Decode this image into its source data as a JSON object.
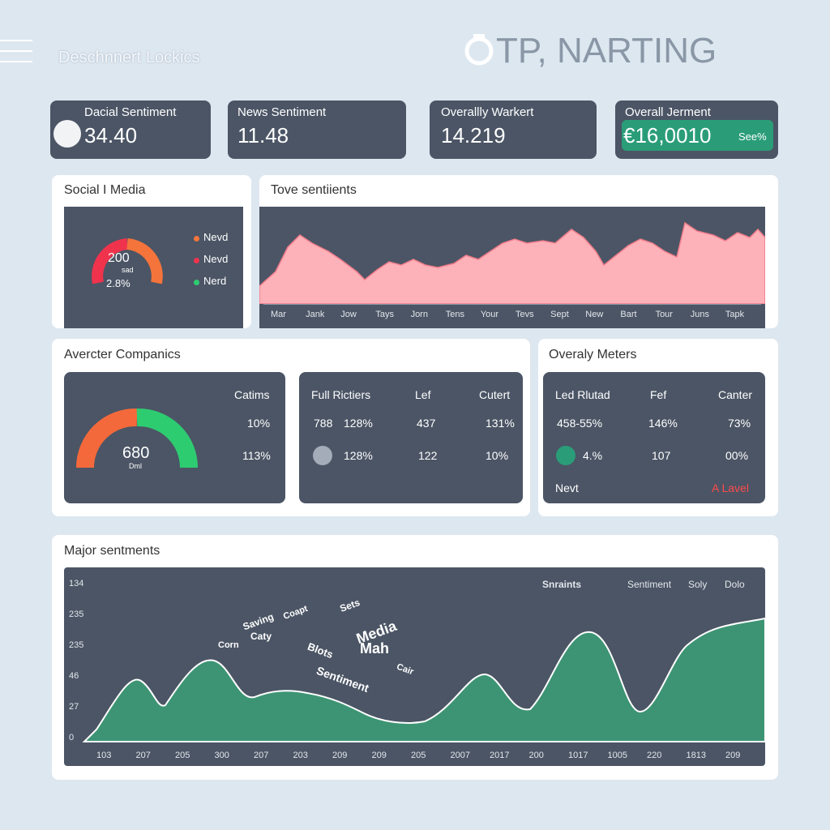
{
  "header": {
    "brand": "Deschnnert Lockics",
    "logo": "TP, NARTING"
  },
  "kpis": [
    {
      "label": "Dacial Sentiment",
      "value": "34.40"
    },
    {
      "label": "News Sentiment",
      "value": "11.48"
    },
    {
      "label": "Overallly Warkert",
      "value": "14.219"
    },
    {
      "label": "Overall Jerment",
      "value": "€16,0010",
      "badge": "See%"
    }
  ],
  "social": {
    "title": "Social I Media",
    "gauge_value": "200",
    "gauge_sub": "sad",
    "gauge_pct": "2.8%",
    "legend": [
      "Nevd",
      "Nevd",
      "Nerd"
    ]
  },
  "trend": {
    "title": "Tove sentiients",
    "x_labels": [
      "Mar",
      "Jank",
      "Jow",
      "Tays",
      "Jorn",
      "Tens",
      "Your",
      "Tevs",
      "Sept",
      "New",
      "Bart",
      "Tour",
      "Juns",
      "Tapk"
    ]
  },
  "companies": {
    "title": "Avercter Companics",
    "gauge_value": "680",
    "gauge_sub": "Dml",
    "side_header": "Catims",
    "side_values": [
      "10%",
      "113%"
    ],
    "table": {
      "headers": [
        "Full Rictiers",
        "Lef",
        "Cutert"
      ],
      "rows": [
        [
          "788",
          "128%",
          "437",
          "131%"
        ],
        [
          "128%",
          "122",
          "10%"
        ]
      ]
    }
  },
  "meters": {
    "title": "Overaly Meters",
    "headers": [
      "Led Rlutad",
      "Fef",
      "Canter"
    ],
    "rows": [
      [
        "458-55%",
        "146%",
        "73%"
      ],
      [
        "4.%",
        "107",
        "00%"
      ]
    ],
    "footer_left": "Nevt",
    "footer_right": "A Lavel"
  },
  "major": {
    "title": "Major sentments",
    "y_labels": [
      "134",
      "235",
      "235",
      "46",
      "27",
      "0"
    ],
    "x_labels": [
      "103",
      "207",
      "205",
      "300",
      "207",
      "203",
      "209",
      "209",
      "205",
      "2007",
      "2017",
      "200",
      "1017",
      "1005",
      "220",
      "1813",
      "209"
    ],
    "legend": [
      "Snraints",
      "Sentiment",
      "Soly",
      "Dolo"
    ],
    "words": [
      "Media",
      "Mah",
      "Sentiment",
      "Saving",
      "Caty",
      "Blots",
      "Sets",
      "Corn",
      "Cair",
      "Coapt"
    ]
  }
}
